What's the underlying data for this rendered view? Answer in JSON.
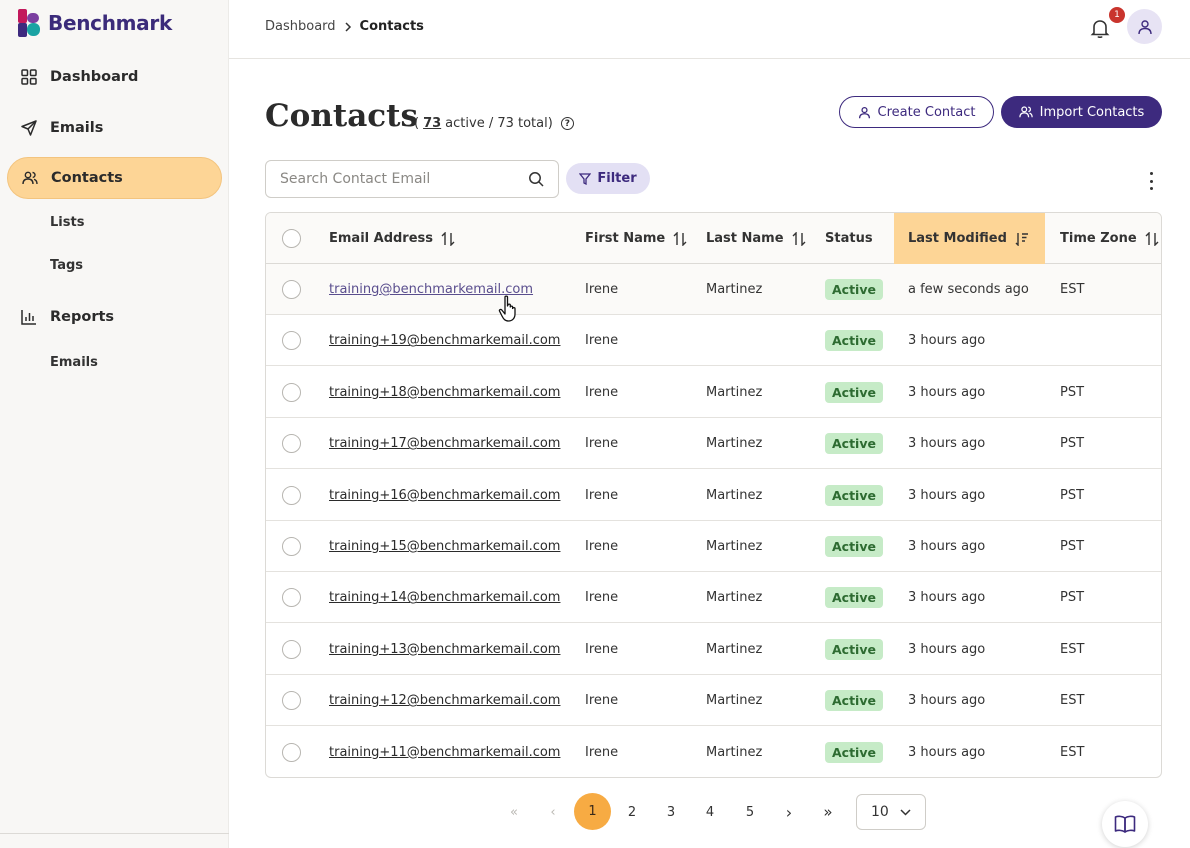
{
  "app": {
    "logo_text": "Benchmark"
  },
  "sidebar": {
    "items": [
      {
        "label": "Dashboard",
        "icon": "grid-icon"
      },
      {
        "label": "Emails",
        "icon": "send-icon"
      },
      {
        "label": "Contacts",
        "icon": "users-icon",
        "active": true
      },
      {
        "label": "Reports",
        "icon": "bar-chart-icon"
      }
    ],
    "contacts_sub": [
      "Lists",
      "Tags"
    ],
    "reports_sub": [
      "Emails"
    ]
  },
  "header": {
    "breadcrumb_root": "Dashboard",
    "breadcrumb_current": "Contacts",
    "notification_count": "1"
  },
  "page": {
    "title": "Contacts",
    "counts_open": "(",
    "active_count": "73",
    "counts_rest": " active / 73 total)",
    "help_glyph": "?",
    "create_button": "Create Contact",
    "import_button": "Import Contacts"
  },
  "search": {
    "placeholder": "Search Contact Email"
  },
  "filter": {
    "label": "Filter"
  },
  "table": {
    "columns": [
      "Email Address",
      "First Name",
      "Last Name",
      "Status",
      "Last Modified",
      "Time Zone"
    ],
    "rows": [
      {
        "email": "training@benchmarkemail.com",
        "first": "Irene",
        "last": "Martinez",
        "status": "Active",
        "modified": "a few seconds ago",
        "tz": "EST"
      },
      {
        "email": "training+19@benchmarkemail.com",
        "first": "Irene",
        "last": "",
        "status": "Active",
        "modified": "3 hours ago",
        "tz": ""
      },
      {
        "email": "training+18@benchmarkemail.com",
        "first": "Irene",
        "last": "Martinez",
        "status": "Active",
        "modified": "3 hours ago",
        "tz": "PST"
      },
      {
        "email": "training+17@benchmarkemail.com",
        "first": "Irene",
        "last": "Martinez",
        "status": "Active",
        "modified": "3 hours ago",
        "tz": "PST"
      },
      {
        "email": "training+16@benchmarkemail.com",
        "first": "Irene",
        "last": "Martinez",
        "status": "Active",
        "modified": "3 hours ago",
        "tz": "PST"
      },
      {
        "email": "training+15@benchmarkemail.com",
        "first": "Irene",
        "last": "Martinez",
        "status": "Active",
        "modified": "3 hours ago",
        "tz": "PST"
      },
      {
        "email": "training+14@benchmarkemail.com",
        "first": "Irene",
        "last": "Martinez",
        "status": "Active",
        "modified": "3 hours ago",
        "tz": "PST"
      },
      {
        "email": "training+13@benchmarkemail.com",
        "first": "Irene",
        "last": "Martinez",
        "status": "Active",
        "modified": "3 hours ago",
        "tz": "EST"
      },
      {
        "email": "training+12@benchmarkemail.com",
        "first": "Irene",
        "last": "Martinez",
        "status": "Active",
        "modified": "3 hours ago",
        "tz": "EST"
      },
      {
        "email": "training+11@benchmarkemail.com",
        "first": "Irene",
        "last": "Martinez",
        "status": "Active",
        "modified": "3 hours ago",
        "tz": "EST"
      }
    ]
  },
  "pagination": {
    "first": "«",
    "prev": "‹",
    "pages": [
      "1",
      "2",
      "3",
      "4",
      "5"
    ],
    "current": "1",
    "next": "›",
    "last": "»",
    "page_size": "10"
  },
  "colors": {
    "brand_purple": "#3d2a7e",
    "accent_orange": "#f7ab43",
    "active_nav": "#fdd596",
    "status_green": "#c6ebc7"
  }
}
